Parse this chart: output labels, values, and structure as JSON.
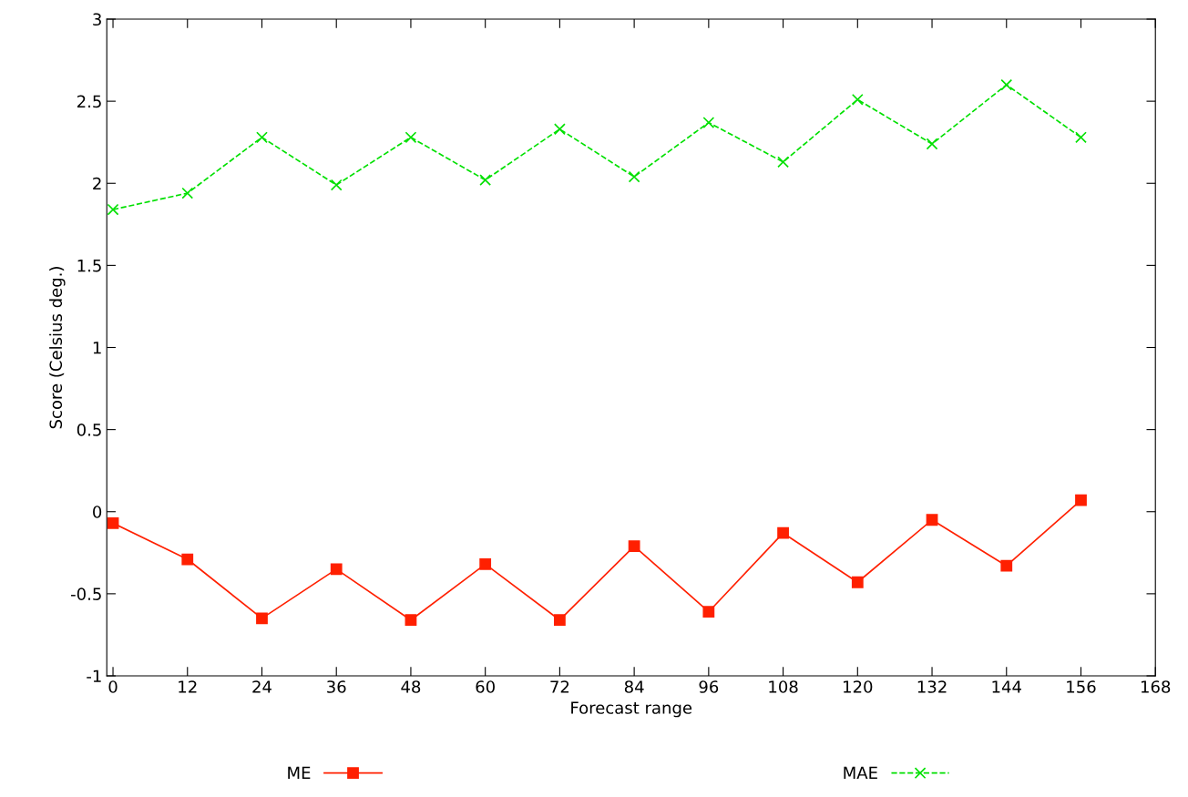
{
  "chart_data": {
    "type": "line",
    "xlabel": "Forecast range",
    "ylabel": "Score (Celsius deg.)",
    "x": [
      0,
      12,
      24,
      36,
      48,
      60,
      72,
      84,
      96,
      108,
      120,
      132,
      144,
      156
    ],
    "series": [
      {
        "name": "ME",
        "color": "#ff2000",
        "marker": "square",
        "line_style": "solid",
        "values": [
          -0.07,
          -0.29,
          -0.65,
          -0.35,
          -0.66,
          -0.32,
          -0.66,
          -0.21,
          -0.61,
          -0.13,
          -0.43,
          -0.05,
          -0.33,
          0.07
        ]
      },
      {
        "name": "MAE",
        "color": "#00e000",
        "marker": "cross",
        "line_style": "dashed",
        "values": [
          1.84,
          1.94,
          2.28,
          1.99,
          2.28,
          2.02,
          2.33,
          2.04,
          2.37,
          2.13,
          2.51,
          2.24,
          2.6,
          2.28
        ]
      }
    ],
    "xlim": [
      -1,
      168
    ],
    "xticks": [
      0,
      12,
      24,
      36,
      48,
      60,
      72,
      84,
      96,
      108,
      120,
      132,
      144,
      156,
      168
    ],
    "ylim": [
      -1,
      3
    ],
    "yticks": [
      -1,
      -0.5,
      0,
      0.5,
      1,
      1.5,
      2,
      2.5,
      3
    ],
    "grid": false,
    "legend": "bottom"
  }
}
